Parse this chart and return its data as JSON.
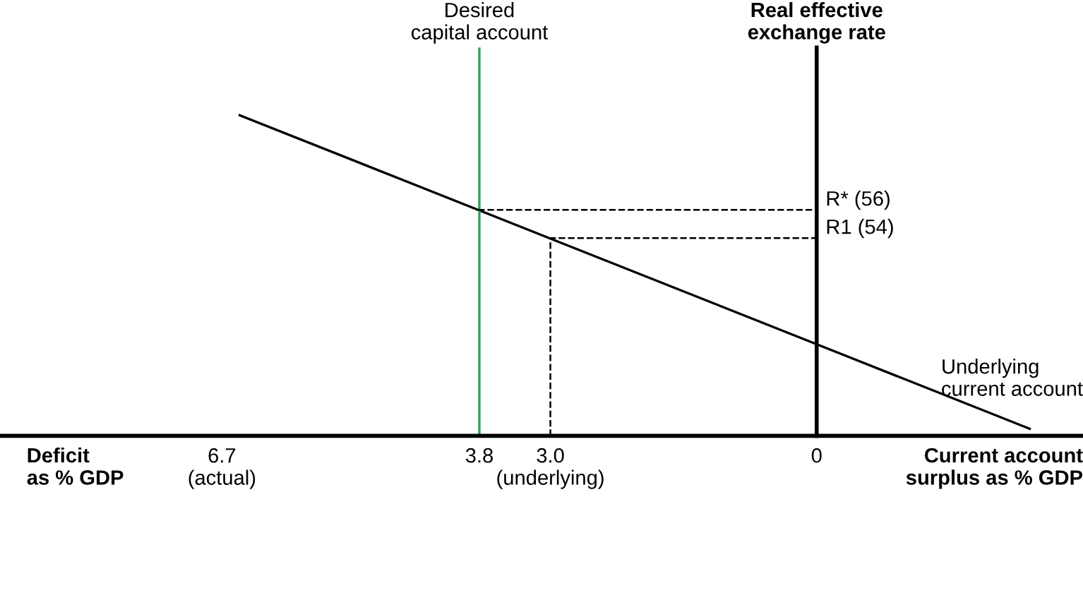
{
  "chart_data": {
    "type": "line",
    "x": [
      6.5,
      -2.4
    ],
    "series": [
      {
        "name": "Underlying\ncurrent account",
        "color": "#000000",
        "values": [
          62.7,
          40.5
        ]
      }
    ],
    "xlim": [
      9.2,
      -3.0
    ],
    "ylim": [
      40,
      67.5
    ],
    "xticks": [
      {
        "value": 6.7,
        "label": "6.7\n(actual)"
      },
      3.8,
      {
        "value": 3.0,
        "label": "3.0\n(underlying)"
      },
      0
    ],
    "tick_labels": "x",
    "xlabel": "Current account\nsurplus as % GDP",
    "ylabel": "Real effective\nexchange rate",
    "annotations": [
      "Deficit\nas % GDP"
    ],
    "ref_lines": [
      {
        "axis": "x",
        "value": 3.8,
        "label": "Desired\ncapital account",
        "color": "#2ca05a",
        "line_style": "solid"
      },
      {
        "axis": "y",
        "value": 56,
        "label": "R* (56)",
        "color": "#000000",
        "line_style": "dashed"
      },
      {
        "axis": "y",
        "value": 54,
        "label": "R1 (54)",
        "color": "#000000",
        "line_style": "dashed"
      },
      {
        "axis": "x",
        "value": 3.0,
        "label": null,
        "color": "#000000",
        "line_style": "dashed"
      }
    ],
    "grid": false,
    "marker": "none",
    "line_style": "solid"
  }
}
